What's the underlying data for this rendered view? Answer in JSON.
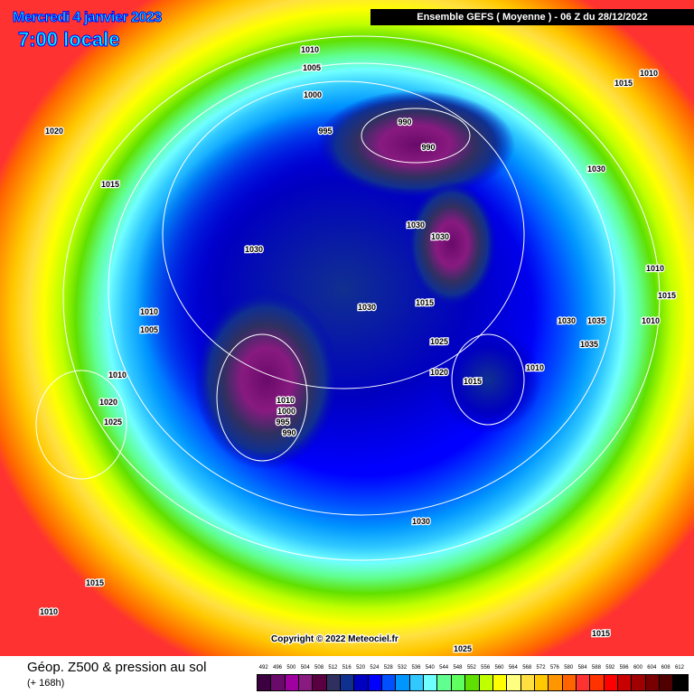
{
  "header": {
    "date": "Mercredi 4 janvier 2023",
    "time": "7:00 locale",
    "model": "Ensemble GEFS  ( Moyenne )  -  06 Z du 28/12/2022"
  },
  "footer": {
    "title": "Géop. Z500 & pression au sol",
    "subtitle": "(+ 168h)"
  },
  "copyright": "Copyright © 2022 Meteociel.fr",
  "legend": {
    "labels": [
      "492",
      "496",
      "500",
      "504",
      "508",
      "512",
      "516",
      "520",
      "524",
      "528",
      "532",
      "536",
      "540",
      "544",
      "548",
      "552",
      "556",
      "560",
      "564",
      "568",
      "572",
      "576",
      "580",
      "584",
      "588",
      "592",
      "596",
      "600",
      "604",
      "608",
      "612"
    ],
    "colors": [
      "#3c0040",
      "#6a0a6a",
      "#a000a0",
      "#881a80",
      "#5a0040",
      "#303060",
      "#103090",
      "#0000c0",
      "#0000ff",
      "#0050ff",
      "#0096ff",
      "#30c8ff",
      "#70ffff",
      "#60ff90",
      "#60ff60",
      "#60e000",
      "#c0ff00",
      "#ffff00",
      "#ffff80",
      "#ffe040",
      "#ffc800",
      "#ff9600",
      "#ff6400",
      "#ff3232",
      "#ff3200",
      "#ff0000",
      "#c80000",
      "#a00000",
      "#780000",
      "#500000",
      "#000000"
    ]
  },
  "isobars": [
    {
      "label": "1010"
    },
    {
      "label": "1005"
    },
    {
      "label": "1000"
    },
    {
      "label": "995"
    },
    {
      "label": "990"
    },
    {
      "label": "990"
    },
    {
      "label": "1020"
    },
    {
      "label": "1015"
    },
    {
      "label": "1030"
    },
    {
      "label": "1030"
    },
    {
      "label": "1030"
    },
    {
      "label": "1030"
    },
    {
      "label": "1015"
    },
    {
      "label": "1030"
    },
    {
      "label": "1005"
    },
    {
      "label": "1010"
    },
    {
      "label": "1020"
    },
    {
      "label": "1025"
    },
    {
      "label": "1025"
    },
    {
      "label": "1020"
    },
    {
      "label": "1015"
    },
    {
      "label": "1010"
    },
    {
      "label": "1010"
    },
    {
      "label": "1000"
    },
    {
      "label": "995"
    },
    {
      "label": "990"
    },
    {
      "label": "1030"
    },
    {
      "label": "1035"
    },
    {
      "label": "1035"
    },
    {
      "label": "1010"
    },
    {
      "label": "1015"
    },
    {
      "label": "1010"
    },
    {
      "label": "1015"
    },
    {
      "label": "1010"
    },
    {
      "label": "1010"
    },
    {
      "label": "1030"
    },
    {
      "label": "1015"
    },
    {
      "label": "1010"
    },
    {
      "label": "1025"
    },
    {
      "label": "1015"
    }
  ]
}
